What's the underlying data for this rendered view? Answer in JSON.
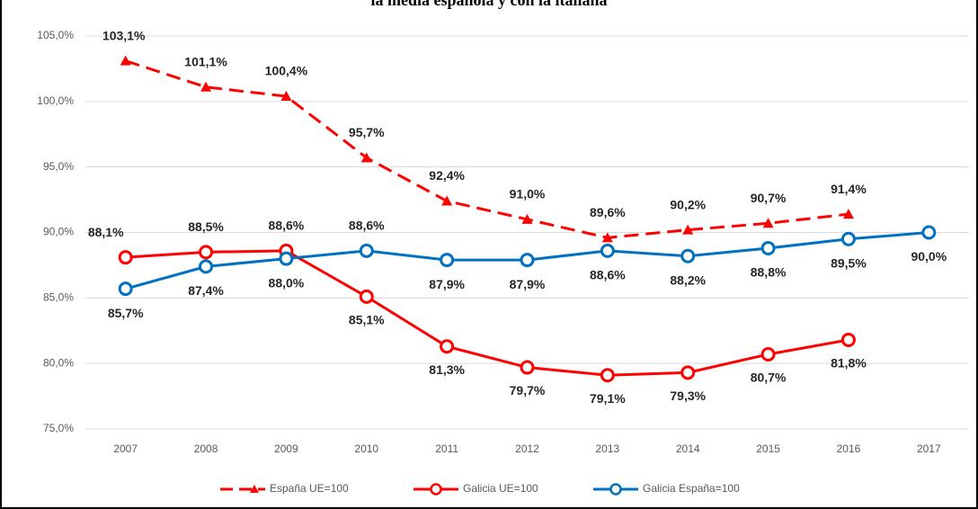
{
  "chart_data": {
    "type": "line",
    "title": "la media española y con la italiana",
    "categories": [
      "2007",
      "2008",
      "2009",
      "2010",
      "2011",
      "2012",
      "2013",
      "2014",
      "2015",
      "2016",
      "2017"
    ],
    "series": [
      {
        "name": "España UE=100",
        "color": "#ff0000",
        "dash": true,
        "marker": "triangle",
        "values": [
          103.1,
          101.1,
          100.4,
          95.7,
          92.4,
          91.0,
          89.6,
          90.2,
          90.7,
          91.4,
          null
        ],
        "value_labels": [
          "103,1%",
          "101,1%",
          "100,4%",
          "95,7%",
          "92,4%",
          "91,0%",
          "89,6%",
          "90,2%",
          "90,7%",
          "91,4%",
          null
        ]
      },
      {
        "name": "Galicia UE=100",
        "color": "#ff0000",
        "dash": false,
        "marker": "circle",
        "values": [
          88.1,
          88.5,
          88.6,
          85.1,
          81.3,
          79.7,
          79.1,
          79.3,
          80.7,
          81.8,
          null
        ],
        "value_labels": [
          "88,1%",
          "88,5%",
          "88,6%",
          "85,1%",
          "81,3%",
          "79,7%",
          "79,1%",
          "79,3%",
          "80,7%",
          "81,8%",
          null
        ]
      },
      {
        "name": "Galicia España=100",
        "color": "#0070c0",
        "dash": false,
        "marker": "circle",
        "values": [
          85.7,
          87.4,
          88.0,
          88.6,
          87.9,
          87.9,
          88.6,
          88.2,
          88.8,
          89.5,
          90.0
        ],
        "value_labels": [
          "85,7%",
          "87,4%",
          "88,0%",
          "88,6%",
          "87,9%",
          "87,9%",
          "88,6%",
          "88,2%",
          "88,8%",
          "89,5%",
          "90,0%"
        ]
      }
    ],
    "ylim": [
      75,
      105
    ],
    "yticks": [
      {
        "value": 75,
        "label": "75,0%"
      },
      {
        "value": 80,
        "label": "80,0%"
      },
      {
        "value": 85,
        "label": "85,0%"
      },
      {
        "value": 90,
        "label": "90,0%"
      },
      {
        "value": 95,
        "label": "95,0%"
      },
      {
        "value": 100,
        "label": "100,0%"
      },
      {
        "value": 105,
        "label": "105,0%"
      }
    ],
    "grid": true,
    "legend": "bottom"
  }
}
